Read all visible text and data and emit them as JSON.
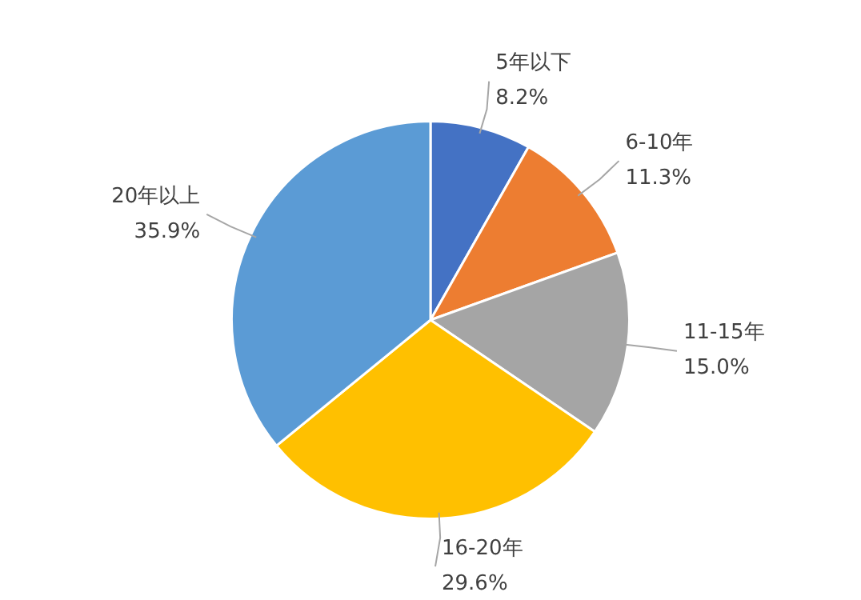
{
  "chart_data": {
    "type": "pie",
    "categories": [
      "5年以下",
      "6-10年",
      "11-15年",
      "16-20年",
      "20年以上"
    ],
    "values": [
      8.2,
      11.3,
      15.0,
      29.6,
      35.9
    ],
    "value_labels": [
      "8.2%",
      "11.3%",
      "15.0%",
      "29.6%",
      "35.9%"
    ],
    "colors": [
      "#4472c4",
      "#ed7d31",
      "#a5a5a5",
      "#ffc000",
      "#5b9bd5"
    ],
    "legend": false
  }
}
